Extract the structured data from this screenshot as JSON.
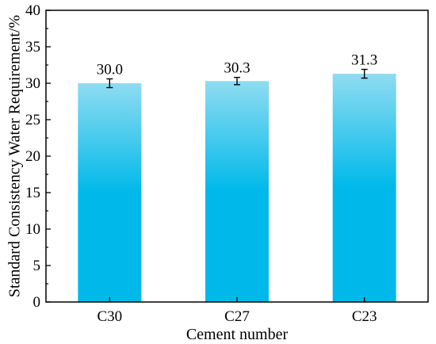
{
  "chart_data": {
    "type": "bar",
    "categories": [
      "C30",
      "C27",
      "C23"
    ],
    "values": [
      30.0,
      30.3,
      31.3
    ],
    "errors": [
      0.6,
      0.5,
      0.6
    ],
    "data_labels": [
      "30.0",
      "30.3",
      "31.3"
    ],
    "xlabel": "Cement number",
    "ylabel": "Standard Consistency Water Requirement/%",
    "ylim": [
      0,
      40
    ],
    "yticks": [
      "0",
      "5",
      "10",
      "15",
      "20",
      "25",
      "30",
      "35",
      "40"
    ],
    "grid": false,
    "legend": "none",
    "colors": {
      "bar_top": "#8fdcf1",
      "bar_bottom": "#00b9ea",
      "axis": "#000000",
      "error_bar": "#000000"
    }
  }
}
